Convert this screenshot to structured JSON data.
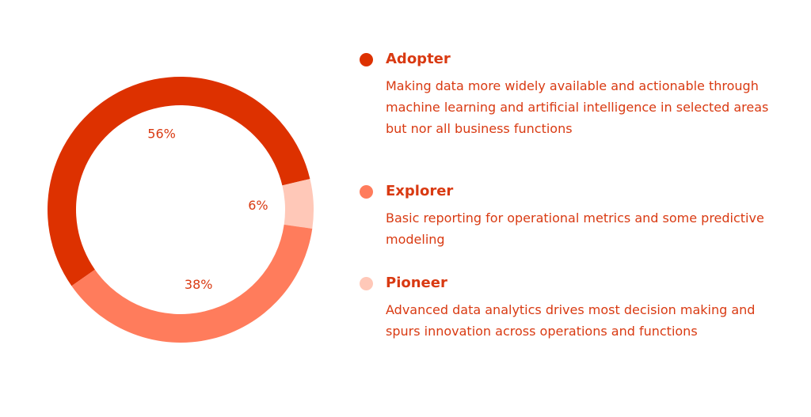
{
  "chart_data": {
    "type": "pie",
    "variant": "donut",
    "categories": [
      "Adopter",
      "Pioneer",
      "Explorer"
    ],
    "values": [
      56,
      6,
      38
    ],
    "value_labels": [
      "56%",
      "6%",
      "38%"
    ],
    "colors": [
      "#dd3100",
      "#ffc8b8",
      "#ff7c5c"
    ],
    "title": "",
    "legend_placement": "right"
  },
  "legend": [
    {
      "title": "Adopter",
      "color": "#dd3100",
      "description": "Making data more widely available and actionable through machine learning and artificial intelligence in selected areas but nor all business functions"
    },
    {
      "title": "Explorer",
      "color": "#ff7c5c",
      "description": "Basic reporting for operational metrics and some predictive modeling"
    },
    {
      "title": "Pioneer",
      "color": "#ffc8b8",
      "description": "Advanced data analytics drives most decision making and spurs innovation across operations and functions"
    }
  ]
}
